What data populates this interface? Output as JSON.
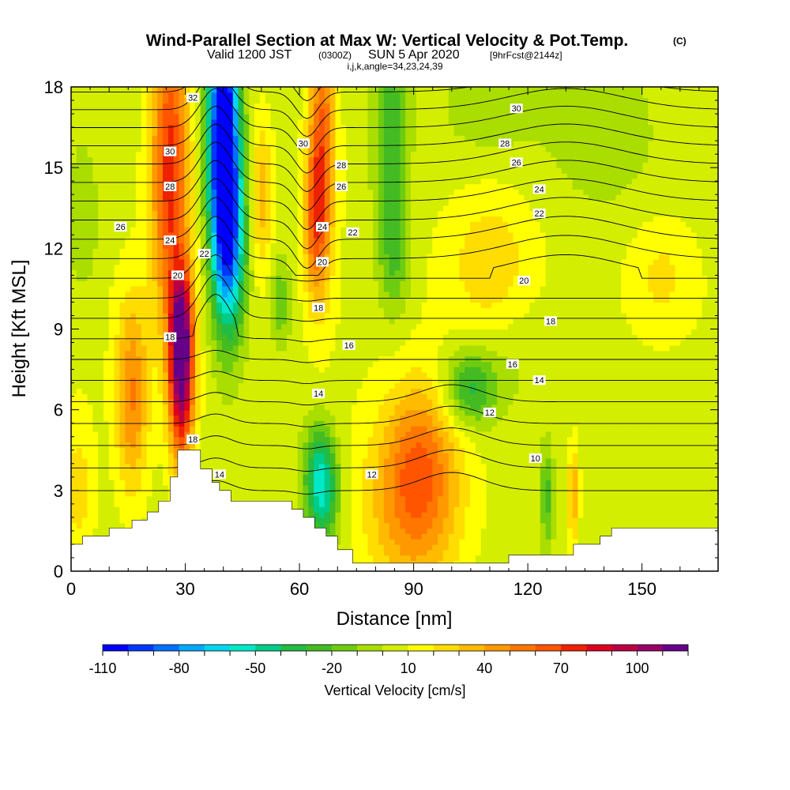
{
  "header": {
    "title": "Wind-Parallel Section at Max W: Vertical Velocity & Pot.Temp.",
    "copyright": "(C)",
    "valid_a": "Valid 1200 JST",
    "valid_b": "(0300Z)",
    "valid_c": "SUN 5 Apr 2020",
    "valid_d": "[9hrFcst@2144z]",
    "params": "i,j,k,angle=34,23,24,39"
  },
  "colors": {
    "cb": [
      "#0000ff",
      "#0037ff",
      "#0070ff",
      "#00a8ff",
      "#00d6f0",
      "#00e8c8",
      "#00cc88",
      "#22bb44",
      "#44bb22",
      "#6ecc10",
      "#aadd00",
      "#d4ee00",
      "#ffff00",
      "#ffdd00",
      "#ffbb00",
      "#ff9900",
      "#ff7700",
      "#ff5500",
      "#ee2200",
      "#dd0022",
      "#bb0044",
      "#990066",
      "#660088"
    ],
    "terrain": "#ffffff",
    "contour": "#000000"
  },
  "chart_data": {
    "type": "heatmap",
    "xlabel": "Distance [nm]",
    "ylabel": "Height [Kft MSL]",
    "xlim": [
      0,
      170
    ],
    "ylim": [
      0,
      18
    ],
    "x_ticks": [
      "0",
      "30",
      "60",
      "90",
      "120",
      "150"
    ],
    "y_ticks": [
      "0",
      "3",
      "6",
      "9",
      "12",
      "15",
      "18"
    ],
    "colorbar": {
      "label": "Vertical Velocity [cm/s]",
      "min": -110,
      "max": 120,
      "step": 10,
      "ticks": [
        "-110",
        "-80",
        "-50",
        "-20",
        "10",
        "40",
        "70",
        "100"
      ]
    },
    "terrain": [
      [
        0,
        1.0
      ],
      [
        3,
        1.0
      ],
      [
        3,
        1.3
      ],
      [
        10,
        1.3
      ],
      [
        10,
        1.6
      ],
      [
        16,
        1.6
      ],
      [
        16,
        1.9
      ],
      [
        20,
        1.9
      ],
      [
        20,
        2.2
      ],
      [
        23,
        2.2
      ],
      [
        23,
        2.6
      ],
      [
        26,
        2.6
      ],
      [
        26,
        3.5
      ],
      [
        28,
        3.5
      ],
      [
        28,
        4.5
      ],
      [
        34,
        4.5
      ],
      [
        34,
        3.8
      ],
      [
        37,
        3.8
      ],
      [
        37,
        3.3
      ],
      [
        39,
        3.3
      ],
      [
        39,
        3.0
      ],
      [
        42,
        3.0
      ],
      [
        42,
        2.6
      ],
      [
        58,
        2.6
      ],
      [
        58,
        2.3
      ],
      [
        61,
        2.3
      ],
      [
        61,
        2.0
      ],
      [
        64,
        2.0
      ],
      [
        64,
        1.6
      ],
      [
        67,
        1.6
      ],
      [
        67,
        1.3
      ],
      [
        70,
        1.3
      ],
      [
        70,
        0.8
      ],
      [
        74,
        0.8
      ],
      [
        74,
        0.3
      ],
      [
        115,
        0.3
      ],
      [
        115,
        0.6
      ],
      [
        132,
        0.6
      ],
      [
        132,
        1.0
      ],
      [
        139,
        1.0
      ],
      [
        139,
        1.3
      ],
      [
        142,
        1.3
      ],
      [
        142,
        1.6
      ],
      [
        170,
        1.6
      ]
    ],
    "w_features": [
      {
        "x": 29,
        "y": 7.5,
        "sx": 2.3,
        "sy": 2.3,
        "w": 110
      },
      {
        "x": 29,
        "y": 9.5,
        "sx": 1.8,
        "sy": 1.2,
        "w": 30
      },
      {
        "x": 26,
        "y": 15,
        "sx": 3.5,
        "sy": 4,
        "w": 70
      },
      {
        "x": 40,
        "y": 16,
        "sx": 2.8,
        "sy": 3.5,
        "w": -140
      },
      {
        "x": 42,
        "y": 12,
        "sx": 3,
        "sy": 2.5,
        "w": -60
      },
      {
        "x": 16,
        "y": 6.5,
        "sx": 3,
        "sy": 2.5,
        "w": 45
      },
      {
        "x": 66,
        "y": 16,
        "sx": 2.5,
        "sy": 3.5,
        "w": 55
      },
      {
        "x": 64,
        "y": 13,
        "sx": 2,
        "sy": 2,
        "w": 40
      },
      {
        "x": 84,
        "y": 16,
        "sx": 3,
        "sy": 3,
        "w": -35
      },
      {
        "x": 85,
        "y": 11.5,
        "sx": 3,
        "sy": 1.5,
        "w": -20
      },
      {
        "x": 55,
        "y": 10,
        "sx": 2,
        "sy": 1.2,
        "w": -25
      },
      {
        "x": 66,
        "y": 2.8,
        "sx": 3,
        "sy": 1.3,
        "w": -50
      },
      {
        "x": 65,
        "y": 4.2,
        "sx": 3,
        "sy": 1.2,
        "w": -25
      },
      {
        "x": 90,
        "y": 2.5,
        "sx": 9,
        "sy": 2.5,
        "w": 45
      },
      {
        "x": 92,
        "y": 4.5,
        "sx": 6,
        "sy": 2,
        "w": 25
      },
      {
        "x": 105,
        "y": 6.8,
        "sx": 5,
        "sy": 1,
        "w": -40
      },
      {
        "x": 110,
        "y": 11.5,
        "sx": 8,
        "sy": 2,
        "w": 20
      },
      {
        "x": 155,
        "y": 11,
        "sx": 6,
        "sy": 1.5,
        "w": 15
      },
      {
        "x": 125,
        "y": 2.8,
        "sx": 1.2,
        "sy": 1.3,
        "w": -30
      },
      {
        "x": 132,
        "y": 2.8,
        "sx": 1,
        "sy": 1.3,
        "w": 35
      },
      {
        "x": 2,
        "y": 3,
        "sx": 3,
        "sy": 2,
        "w": 20
      },
      {
        "x": 3,
        "y": 13,
        "sx": 3,
        "sy": 2,
        "w": -15
      },
      {
        "x": 110,
        "y": 17,
        "sx": 10,
        "sy": 1.5,
        "w": -10
      },
      {
        "x": 140,
        "y": 16,
        "sx": 10,
        "sy": 2,
        "w": -12
      },
      {
        "x": 120,
        "y": 8,
        "sx": 10,
        "sy": 1.5,
        "w": -8
      },
      {
        "x": 50,
        "y": 14,
        "sx": 2,
        "sy": 2,
        "w": 30
      }
    ],
    "contour_labels": [
      {
        "x": 32,
        "y": 17.6,
        "t": "32"
      },
      {
        "x": 26,
        "y": 15.6,
        "t": "30"
      },
      {
        "x": 26,
        "y": 14.3,
        "t": "28"
      },
      {
        "x": 13,
        "y": 12.8,
        "t": "26"
      },
      {
        "x": 26,
        "y": 12.3,
        "t": "24"
      },
      {
        "x": 35,
        "y": 11.8,
        "t": "22"
      },
      {
        "x": 28,
        "y": 11.0,
        "t": "20"
      },
      {
        "x": 26,
        "y": 8.7,
        "t": "18"
      },
      {
        "x": 32,
        "y": 4.9,
        "t": "18"
      },
      {
        "x": 39,
        "y": 3.6,
        "t": "14"
      },
      {
        "x": 61,
        "y": 15.9,
        "t": "30"
      },
      {
        "x": 71,
        "y": 15.1,
        "t": "28"
      },
      {
        "x": 71,
        "y": 14.3,
        "t": "26"
      },
      {
        "x": 66,
        "y": 12.8,
        "t": "24"
      },
      {
        "x": 74,
        "y": 12.6,
        "t": "22"
      },
      {
        "x": 66,
        "y": 11.5,
        "t": "20"
      },
      {
        "x": 65,
        "y": 9.8,
        "t": "18"
      },
      {
        "x": 73,
        "y": 8.4,
        "t": "16"
      },
      {
        "x": 65,
        "y": 6.6,
        "t": "14"
      },
      {
        "x": 79,
        "y": 3.6,
        "t": "12"
      },
      {
        "x": 117,
        "y": 17.2,
        "t": "30"
      },
      {
        "x": 114,
        "y": 15.9,
        "t": "28"
      },
      {
        "x": 117,
        "y": 15.2,
        "t": "26"
      },
      {
        "x": 123,
        "y": 14.2,
        "t": "24"
      },
      {
        "x": 123,
        "y": 13.3,
        "t": "22"
      },
      {
        "x": 119,
        "y": 10.8,
        "t": "20"
      },
      {
        "x": 126,
        "y": 9.3,
        "t": "18"
      },
      {
        "x": 116,
        "y": 7.7,
        "t": "16"
      },
      {
        "x": 123,
        "y": 7.1,
        "t": "14"
      },
      {
        "x": 110,
        "y": 5.9,
        "t": "12"
      },
      {
        "x": 122,
        "y": 4.2,
        "t": "10"
      }
    ]
  }
}
